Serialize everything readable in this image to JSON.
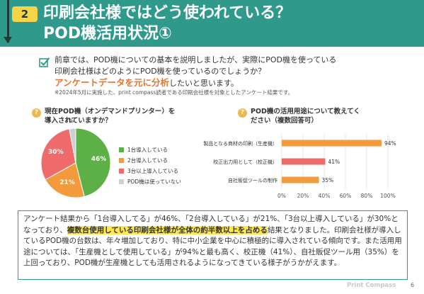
{
  "header": {
    "chapter_number": "2",
    "title_line1": "印刷会社様ではどう使われている？",
    "title_line2": "POD機活用状況①"
  },
  "intro": {
    "line1": "前章では、POD機についての基本を説明しましたが、実際にPOD機を使っている",
    "line2": "印刷会社様はどのようにPOD機を使っているのでしょうか？",
    "highlight": "アンケートデータを元に分析",
    "line3_rest": "したいと思います。",
    "note": "※2024年5月に実施した、print compass読者である印刷会社様を対象としたアンケート結果です。"
  },
  "chart_data": [
    {
      "type": "pie",
      "title": "現在POD機（オンデマンドプリンター）を導入されていますか？",
      "title_line1": "現在POD機（オンデマンドプリンター）を",
      "title_line2": "導入されていますか？",
      "labels": [
        "1台導入している",
        "2台導入している",
        "3台以上導入している",
        "POD機は使っていない"
      ],
      "values": [
        46,
        21,
        30,
        3
      ],
      "value_labels": [
        "46%",
        "21%",
        "30%",
        "3%"
      ],
      "colors": [
        "#5cb046",
        "#f39a3c",
        "#ef6b6b",
        "#cfcfcf"
      ],
      "legend_position": "right"
    },
    {
      "type": "bar",
      "orientation": "horizontal",
      "title": "POD機の活用用途について教えてください（複数回答可）",
      "title_line1": "POD機の活用用途について教えてく",
      "title_line2": "ださい（複数回答可）",
      "categories": [
        "製品となる商材の印刷（生産機）",
        "校正出力用として（校正機）",
        "自社販促ツールの制作"
      ],
      "values": [
        94,
        41,
        35
      ],
      "value_labels": [
        "94%",
        "41%",
        "35%"
      ],
      "colors": [
        "#f39a3c",
        "#ef6b6b",
        "#f39a3c"
      ],
      "xlim": [
        0,
        100
      ],
      "ticks": [
        "0%",
        "20%",
        "40%",
        "60%",
        "80%",
        "100%"
      ],
      "grid": true
    }
  ],
  "summary": {
    "part1": "アンケート結果から「1台導入してる」が46%、「2台導入している」が21%、「3台以上導入している」が30%となっており、",
    "mark": "複数台使用している印刷会社様が全体の約半数以上を占める",
    "part2": "結果となりました。印刷会社様が導入しているPOD機の台数は、年々増加しており、特に中小企業を中心に積極的に導入されている傾向です。また活用用途については、「生産機として使用している」が94%と最も高く、校正機（41%）、自社販促ツール用（35%）を上回っており、POD機が生産機としても活用されるようになってきている様子がうかがえます。"
  },
  "footer": {
    "logo": "Print Compass",
    "page_number": "6"
  },
  "colors": {
    "header_bg": "#2f9a8c",
    "badge": "#f5d547",
    "accent_orange": "#e8742b",
    "highlight": "#fde84f"
  },
  "icons": {
    "check": "checkbox-check-icon",
    "question": "question-circle-icon"
  }
}
